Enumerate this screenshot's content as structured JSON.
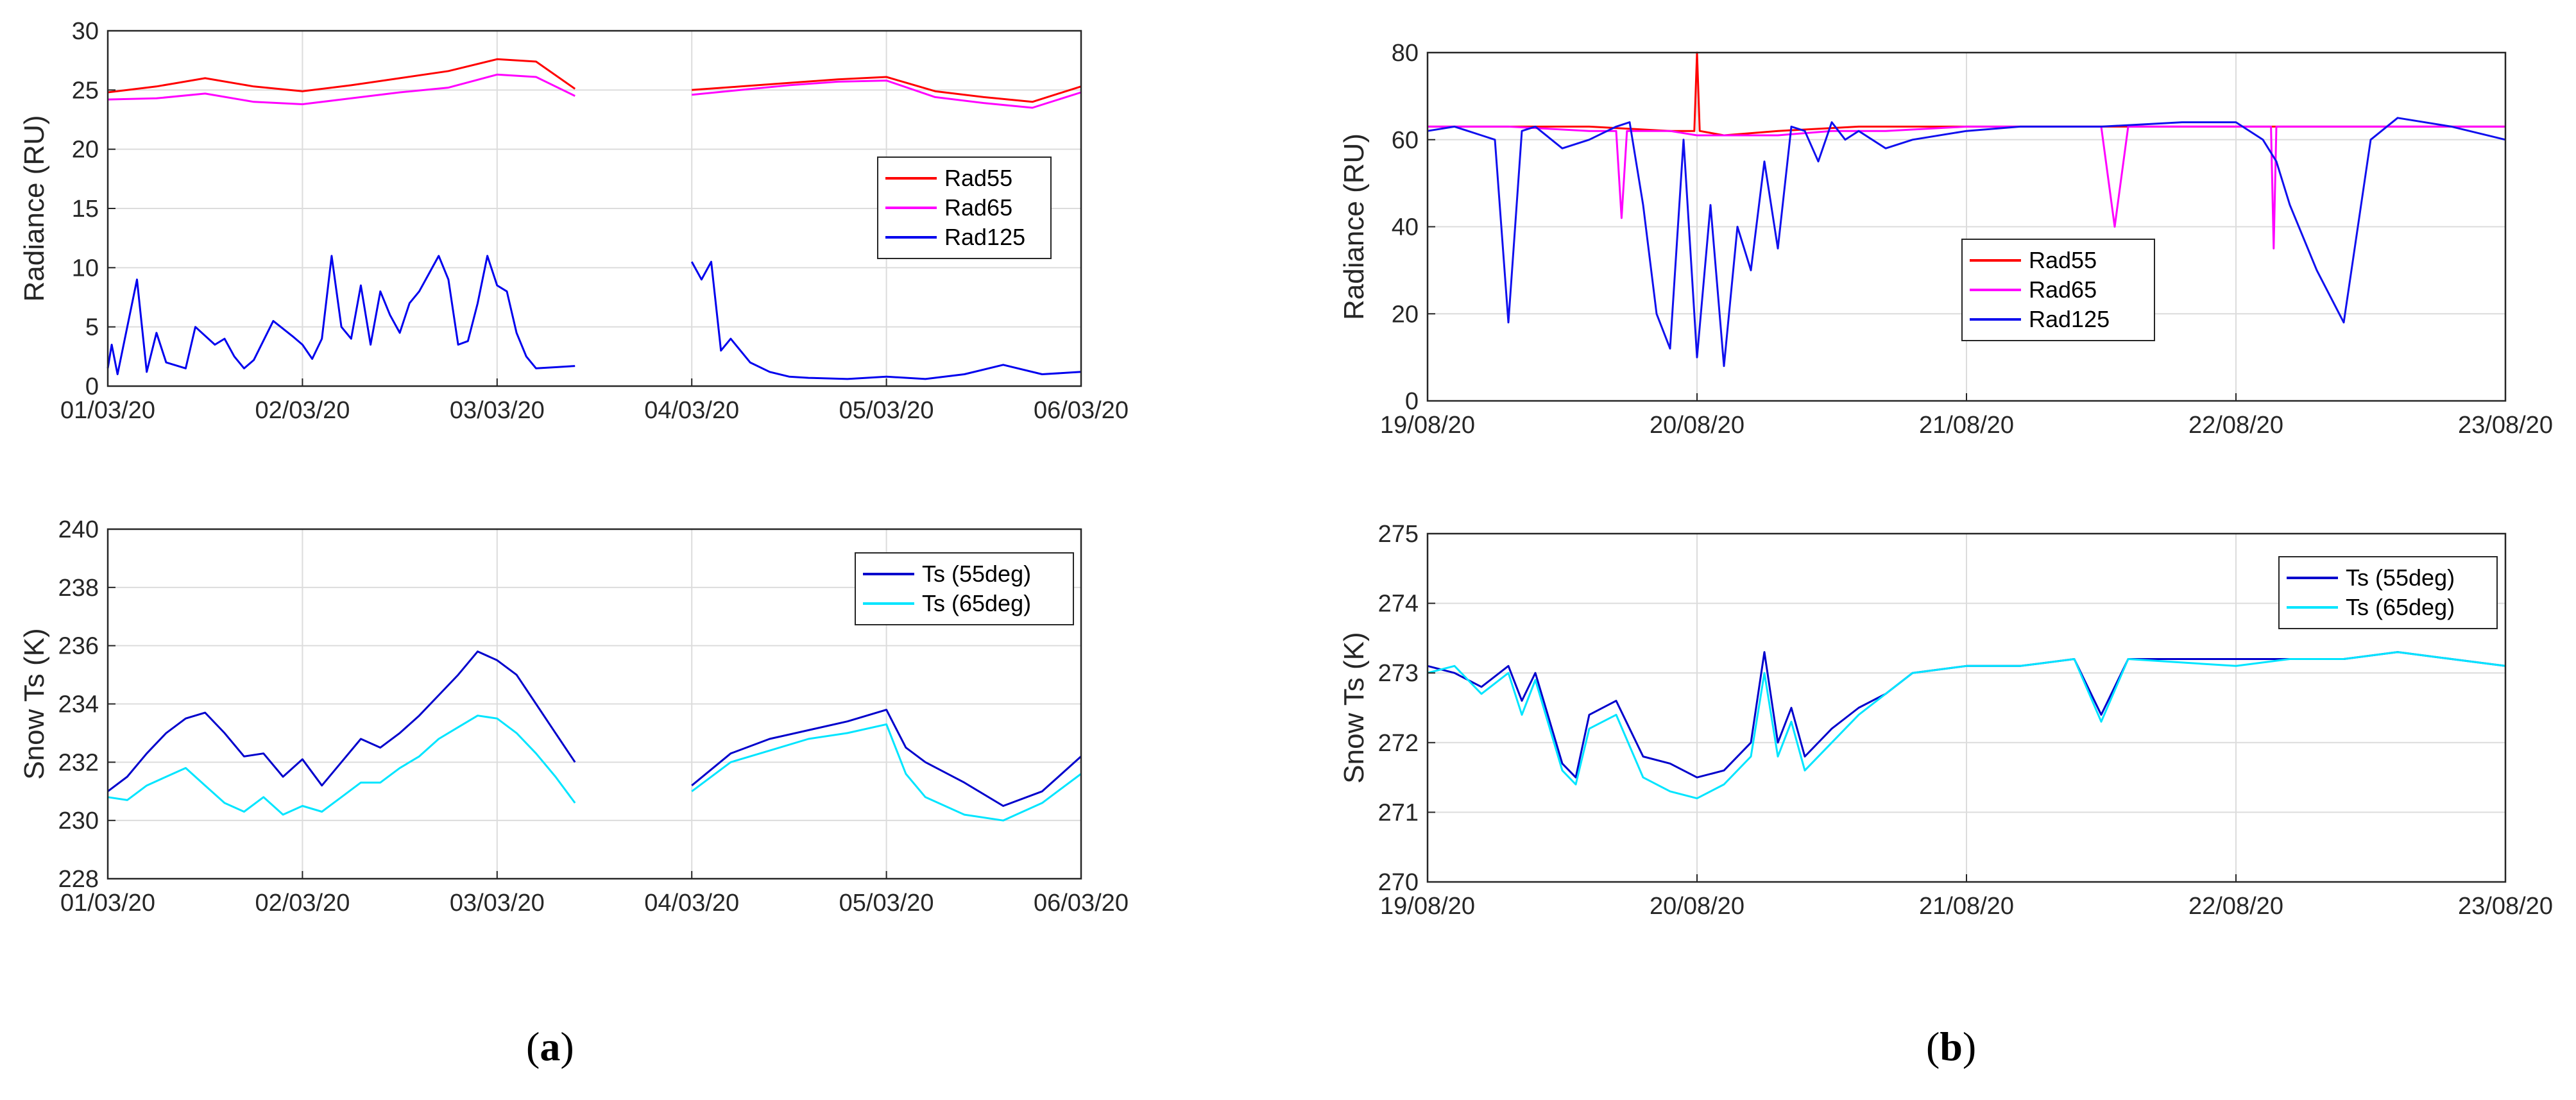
{
  "panels": [
    {
      "open": "(",
      "letter": "a",
      "close": ")"
    },
    {
      "open": "(",
      "letter": "b",
      "close": ")"
    }
  ],
  "chart_data": [
    {
      "id": "a-top",
      "type": "line",
      "ylabel": "Radiance (RU)",
      "xlim": [
        "01/03/20",
        "06/03/20"
      ],
      "ylim": [
        0,
        30
      ],
      "xticks": [
        "01/03/20",
        "02/03/20",
        "03/03/20",
        "04/03/20",
        "05/03/20",
        "06/03/20"
      ],
      "yticks": [
        "0",
        "5",
        "10",
        "15",
        "20",
        "25",
        "30"
      ],
      "grid": true,
      "legend": "center-right",
      "gaps": [
        [
          2.4,
          3.0
        ]
      ],
      "series": [
        {
          "name": "Rad55",
          "color": "#ff0000",
          "x": [
            0,
            0.25,
            0.5,
            0.75,
            1.0,
            1.25,
            1.5,
            1.75,
            2.0,
            2.2,
            2.4,
            3.0,
            3.25,
            3.5,
            3.75,
            4.0,
            4.25,
            4.5,
            4.75,
            5.0
          ],
          "y": [
            24.8,
            25.3,
            26.0,
            25.3,
            24.9,
            25.4,
            26.0,
            26.6,
            27.6,
            27.4,
            25.1,
            25.0,
            25.3,
            25.6,
            25.9,
            26.1,
            24.9,
            24.4,
            24.0,
            25.3
          ]
        },
        {
          "name": "Rad65",
          "color": "#ff00ff",
          "x": [
            0,
            0.25,
            0.5,
            0.75,
            1.0,
            1.25,
            1.5,
            1.75,
            2.0,
            2.2,
            2.4,
            3.0,
            3.25,
            3.5,
            3.75,
            4.0,
            4.25,
            4.5,
            4.75,
            5.0
          ],
          "y": [
            24.2,
            24.3,
            24.7,
            24.0,
            23.8,
            24.3,
            24.8,
            25.2,
            26.3,
            26.1,
            24.5,
            24.6,
            25.0,
            25.4,
            25.7,
            25.8,
            24.4,
            23.9,
            23.5,
            24.8
          ]
        },
        {
          "name": "Rad125",
          "color": "#0000ee",
          "x": [
            0,
            0.02,
            0.05,
            0.15,
            0.2,
            0.25,
            0.3,
            0.4,
            0.45,
            0.55,
            0.6,
            0.65,
            0.7,
            0.75,
            0.85,
            0.95,
            1.0,
            1.05,
            1.1,
            1.15,
            1.2,
            1.25,
            1.3,
            1.35,
            1.4,
            1.45,
            1.5,
            1.55,
            1.6,
            1.65,
            1.7,
            1.75,
            1.8,
            1.85,
            1.9,
            1.95,
            2.0,
            2.05,
            2.1,
            2.15,
            2.2,
            2.3,
            2.4,
            3.0,
            3.05,
            3.1,
            3.15,
            3.2,
            3.3,
            3.4,
            3.5,
            3.6,
            3.8,
            4.0,
            4.2,
            4.4,
            4.6,
            4.8,
            5.0
          ],
          "y": [
            1.5,
            3.5,
            1.0,
            9.0,
            1.2,
            4.5,
            2.0,
            1.5,
            5.0,
            3.5,
            4.0,
            2.5,
            1.5,
            2.2,
            5.5,
            4.2,
            3.5,
            2.3,
            4.0,
            11.0,
            5.0,
            4.0,
            8.5,
            3.5,
            8.0,
            6.0,
            4.5,
            7.0,
            8.0,
            9.5,
            11.0,
            9.0,
            3.5,
            3.8,
            7.0,
            11.0,
            8.5,
            8.0,
            4.5,
            2.5,
            1.5,
            1.6,
            1.7,
            10.5,
            9.0,
            10.5,
            3.0,
            4.0,
            2.0,
            1.2,
            0.8,
            0.7,
            0.6,
            0.8,
            0.6,
            1.0,
            1.8,
            1.0,
            1.2
          ]
        }
      ]
    },
    {
      "id": "a-bottom",
      "type": "line",
      "ylabel": "Snow Ts (K)",
      "xlim": [
        "01/03/20",
        "06/03/20"
      ],
      "ylim": [
        228,
        240
      ],
      "xticks": [
        "01/03/20",
        "02/03/20",
        "03/03/20",
        "04/03/20",
        "05/03/20",
        "06/03/20"
      ],
      "yticks": [
        "228",
        "230",
        "232",
        "234",
        "236",
        "238",
        "240"
      ],
      "grid": true,
      "legend": "top-right",
      "gaps": [
        [
          2.4,
          3.0
        ]
      ],
      "series": [
        {
          "name": "Ts (55deg)",
          "color": "#0000cc",
          "x": [
            0,
            0.1,
            0.2,
            0.3,
            0.4,
            0.5,
            0.6,
            0.7,
            0.8,
            0.9,
            1.0,
            1.1,
            1.2,
            1.3,
            1.4,
            1.5,
            1.6,
            1.7,
            1.8,
            1.9,
            2.0,
            2.1,
            2.2,
            2.3,
            2.4,
            3.0,
            3.2,
            3.4,
            3.6,
            3.8,
            4.0,
            4.1,
            4.2,
            4.4,
            4.6,
            4.8,
            5.0
          ],
          "y": [
            231.0,
            231.5,
            232.3,
            233.0,
            233.5,
            233.7,
            233.0,
            232.2,
            232.3,
            231.5,
            232.1,
            231.2,
            232.0,
            232.8,
            232.5,
            233.0,
            233.6,
            234.3,
            235.0,
            235.8,
            235.5,
            235.0,
            234.0,
            233.0,
            232.0,
            231.2,
            232.3,
            232.8,
            233.1,
            233.4,
            233.8,
            232.5,
            232.0,
            231.3,
            230.5,
            231.0,
            232.2
          ]
        },
        {
          "name": "Ts (65deg)",
          "color": "#00e5ff",
          "x": [
            0,
            0.1,
            0.2,
            0.3,
            0.4,
            0.5,
            0.6,
            0.7,
            0.8,
            0.9,
            1.0,
            1.1,
            1.2,
            1.3,
            1.4,
            1.5,
            1.6,
            1.7,
            1.8,
            1.9,
            2.0,
            2.1,
            2.2,
            2.3,
            2.4,
            3.0,
            3.2,
            3.4,
            3.6,
            3.8,
            4.0,
            4.1,
            4.2,
            4.4,
            4.6,
            4.8,
            5.0
          ],
          "y": [
            230.8,
            230.7,
            231.2,
            231.5,
            231.8,
            231.2,
            230.6,
            230.3,
            230.8,
            230.2,
            230.5,
            230.3,
            230.8,
            231.3,
            231.3,
            231.8,
            232.2,
            232.8,
            233.2,
            233.6,
            233.5,
            233.0,
            232.3,
            231.5,
            230.6,
            231.0,
            232.0,
            232.4,
            232.8,
            233.0,
            233.3,
            231.6,
            230.8,
            230.2,
            230.0,
            230.6,
            231.6
          ]
        }
      ]
    },
    {
      "id": "b-top",
      "type": "line",
      "ylabel": "Radiance (RU)",
      "xlim": [
        "19/08/20",
        "23/08/20"
      ],
      "ylim": [
        0,
        80
      ],
      "xticks": [
        "19/08/20",
        "20/08/20",
        "21/08/20",
        "22/08/20",
        "23/08/20"
      ],
      "yticks": [
        "0",
        "20",
        "40",
        "60",
        "80"
      ],
      "grid": true,
      "legend": "center",
      "series": [
        {
          "name": "Rad55",
          "color": "#ff0000",
          "x": [
            0,
            0.3,
            0.6,
            0.9,
            0.99,
            1.0,
            1.01,
            1.1,
            1.3,
            1.6,
            2.0,
            2.5,
            3.0,
            3.5,
            4.0
          ],
          "y": [
            63,
            63,
            63,
            62,
            62,
            80,
            62,
            61,
            62,
            63,
            63,
            63,
            63,
            63,
            63
          ]
        },
        {
          "name": "Rad65",
          "color": "#ff00ff",
          "x": [
            0,
            0.3,
            0.6,
            0.7,
            0.72,
            0.74,
            0.9,
            1.0,
            1.2,
            1.3,
            1.5,
            1.7,
            2.0,
            2.5,
            2.55,
            2.6,
            3.0,
            3.13,
            3.14,
            3.15,
            3.5,
            3.6,
            4.0
          ],
          "y": [
            63,
            63,
            62,
            62,
            42,
            62,
            62,
            61,
            61,
            61,
            62,
            62,
            63,
            63,
            40,
            63,
            63,
            63,
            35,
            63,
            63,
            63,
            63
          ]
        },
        {
          "name": "Rad125",
          "color": "#1010ee",
          "x": [
            0,
            0.1,
            0.15,
            0.2,
            0.25,
            0.3,
            0.35,
            0.4,
            0.5,
            0.6,
            0.7,
            0.75,
            0.8,
            0.85,
            0.9,
            0.95,
            1.0,
            1.05,
            1.1,
            1.15,
            1.2,
            1.25,
            1.3,
            1.35,
            1.4,
            1.45,
            1.5,
            1.55,
            1.6,
            1.7,
            1.8,
            2.0,
            2.2,
            2.5,
            2.8,
            3.0,
            3.1,
            3.15,
            3.2,
            3.3,
            3.4,
            3.5,
            3.6,
            3.8,
            4.0
          ],
          "y": [
            62,
            63,
            62,
            61,
            60,
            18,
            62,
            63,
            58,
            60,
            63,
            64,
            45,
            20,
            12,
            60,
            10,
            45,
            8,
            40,
            30,
            55,
            35,
            63,
            62,
            55,
            64,
            60,
            62,
            58,
            60,
            62,
            63,
            63,
            64,
            64,
            60,
            55,
            45,
            30,
            18,
            60,
            65,
            63,
            60
          ]
        }
      ]
    },
    {
      "id": "b-bottom",
      "type": "line",
      "ylabel": "Snow Ts (K)",
      "xlim": [
        "19/08/20",
        "23/08/20"
      ],
      "ylim": [
        270,
        275
      ],
      "xticks": [
        "19/08/20",
        "20/08/20",
        "21/08/20",
        "22/08/20",
        "23/08/20"
      ],
      "yticks": [
        "270",
        "271",
        "272",
        "273",
        "274",
        "275"
      ],
      "grid": true,
      "legend": "top-right",
      "series": [
        {
          "name": "Ts (55deg)",
          "color": "#0000cc",
          "x": [
            0,
            0.1,
            0.2,
            0.3,
            0.35,
            0.4,
            0.5,
            0.55,
            0.6,
            0.7,
            0.8,
            0.9,
            1.0,
            1.1,
            1.2,
            1.25,
            1.3,
            1.35,
            1.4,
            1.5,
            1.6,
            1.7,
            1.8,
            2.0,
            2.2,
            2.4,
            2.5,
            2.6,
            3.0,
            3.2,
            3.4,
            3.6,
            3.8,
            4.0
          ],
          "y": [
            273.1,
            273.0,
            272.8,
            273.1,
            272.6,
            273.0,
            271.7,
            271.5,
            272.4,
            272.6,
            271.8,
            271.7,
            271.5,
            271.6,
            272.0,
            273.3,
            272.0,
            272.5,
            271.8,
            272.2,
            272.5,
            272.7,
            273.0,
            273.1,
            273.1,
            273.2,
            272.4,
            273.2,
            273.2,
            273.2,
            273.2,
            273.3,
            273.2,
            273.1
          ]
        },
        {
          "name": "Ts (65deg)",
          "color": "#00e5ff",
          "x": [
            0,
            0.1,
            0.2,
            0.3,
            0.35,
            0.4,
            0.5,
            0.55,
            0.6,
            0.7,
            0.8,
            0.9,
            1.0,
            1.1,
            1.2,
            1.25,
            1.3,
            1.35,
            1.4,
            1.5,
            1.6,
            1.7,
            1.8,
            2.0,
            2.2,
            2.4,
            2.5,
            2.6,
            3.0,
            3.2,
            3.4,
            3.6,
            3.8,
            4.0
          ],
          "y": [
            273.0,
            273.1,
            272.7,
            273.0,
            272.4,
            272.9,
            271.6,
            271.4,
            272.2,
            272.4,
            271.5,
            271.3,
            271.2,
            271.4,
            271.8,
            273.0,
            271.8,
            272.3,
            271.6,
            272.0,
            272.4,
            272.7,
            273.0,
            273.1,
            273.1,
            273.2,
            272.3,
            273.2,
            273.1,
            273.2,
            273.2,
            273.3,
            273.2,
            273.1
          ]
        }
      ]
    }
  ]
}
